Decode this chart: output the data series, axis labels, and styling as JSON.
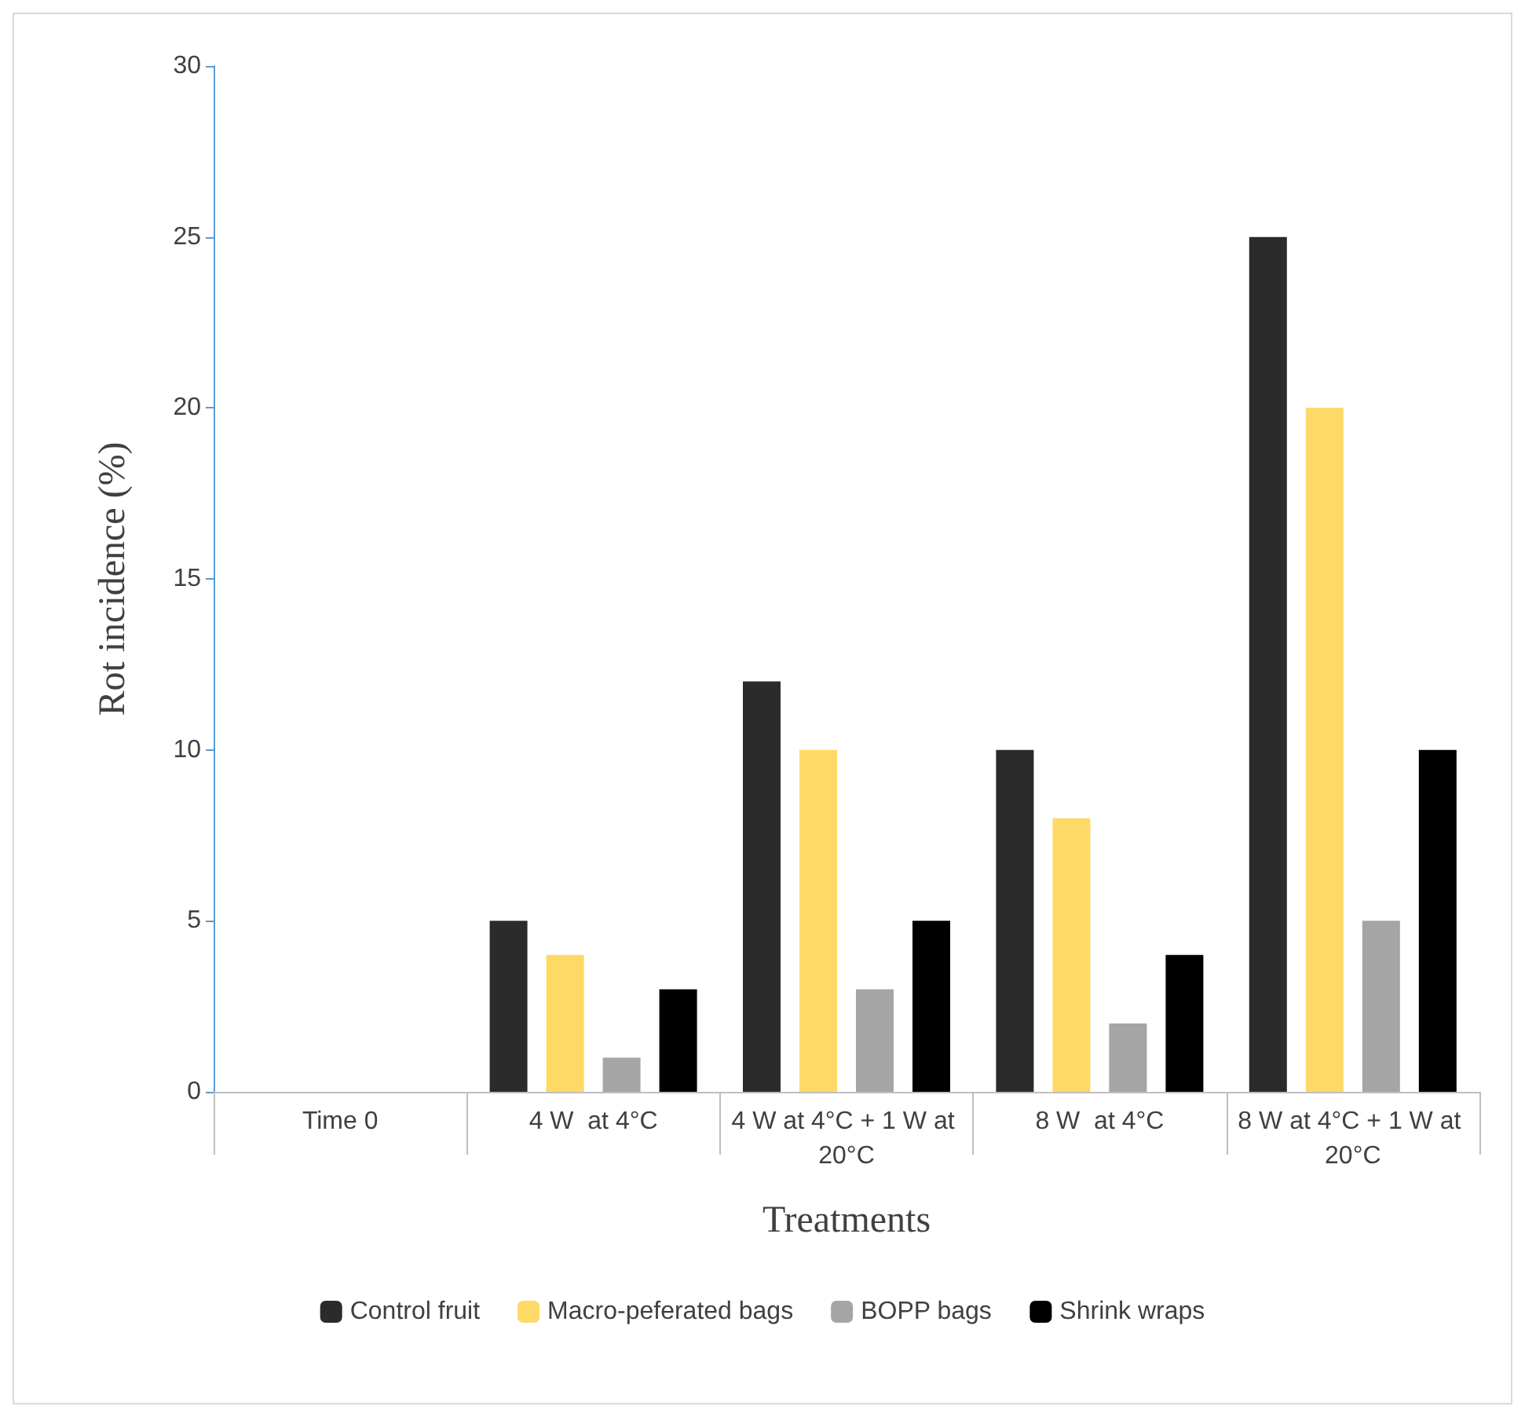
{
  "chart_data": {
    "type": "bar",
    "xlabel": "Treatments",
    "ylabel": "Rot incidence (%)",
    "categories": [
      "Time 0",
      "4 W  at 4°C",
      "4 W at 4°C + 1 W at 20°C",
      "8 W  at 4°C",
      "8 W at 4°C + 1 W at 20°C"
    ],
    "series": [
      {
        "name": "Control fruit",
        "color": "#2b2b2b",
        "values": [
          0,
          5,
          12,
          10,
          25
        ]
      },
      {
        "name": "Macro-peferated bags",
        "color": "#ffd966",
        "values": [
          0,
          4,
          10,
          8,
          20
        ]
      },
      {
        "name": "BOPP bags",
        "color": "#a5a5a5",
        "values": [
          0,
          1,
          3,
          2,
          5
        ]
      },
      {
        "name": "Shrink wraps",
        "color": "#000000",
        "values": [
          0,
          3,
          5,
          4,
          10
        ]
      }
    ],
    "ylim": [
      0,
      30
    ],
    "yticks": [
      0,
      5,
      10,
      15,
      20,
      25,
      30
    ],
    "grid": false,
    "legend": "bottom"
  }
}
